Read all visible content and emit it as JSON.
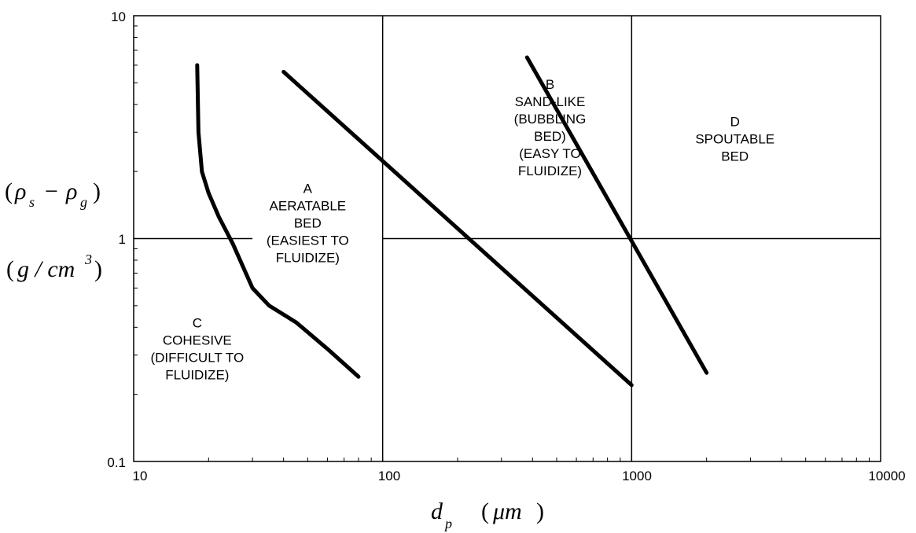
{
  "chart_data": {
    "type": "line",
    "title": "",
    "x_scale": "log",
    "y_scale": "log",
    "xlim": [
      10,
      10000
    ],
    "ylim": [
      0.1,
      10
    ],
    "grid": false,
    "x_ticks": [
      "10",
      "100",
      "1000",
      "10000"
    ],
    "y_ticks": [
      "10",
      "1",
      "0.1"
    ],
    "xlabel": {
      "symbol": "d",
      "subscript": "p",
      "unit": "μm"
    },
    "ylabel": {
      "line1": {
        "symbol_a": "ρ",
        "sub_a": "s",
        "minus": "−",
        "symbol_b": "ρ",
        "sub_b": "g"
      },
      "line2": {
        "unit": "g / cm",
        "exponent": "3"
      }
    },
    "reference_lines": [
      {
        "orientation": "vertical",
        "x": 100,
        "y_range": [
          0.1,
          10
        ]
      },
      {
        "orientation": "vertical",
        "x": 1000,
        "y_range": [
          0.1,
          10
        ]
      },
      {
        "orientation": "horizontal",
        "y": 1,
        "x_range": [
          10,
          30
        ]
      },
      {
        "orientation": "horizontal",
        "y": 1,
        "x_range": [
          100,
          10000
        ]
      }
    ],
    "series": [
      {
        "x": [
          18,
          18.2,
          18.8,
          20,
          22,
          25,
          30,
          35,
          45,
          60,
          80
        ],
        "y": [
          6.0,
          3.0,
          2.0,
          1.6,
          1.25,
          0.95,
          0.6,
          0.5,
          0.42,
          0.32,
          0.24
        ]
      },
      {
        "x": [
          40,
          1000
        ],
        "y": [
          5.6,
          0.22
        ]
      },
      {
        "x": [
          380,
          2000
        ],
        "y": [
          6.5,
          0.25
        ]
      }
    ],
    "regions": [
      {
        "letter": "C",
        "lines": [
          "COHESIVE",
          "(DIFFICULT TO",
          "FLUIDIZE)"
        ],
        "x": 18,
        "y": 0.4
      },
      {
        "letter": "A",
        "lines": [
          "AERATABLE",
          "BED",
          "(EASIEST TO",
          "FLUIDIZE)"
        ],
        "x": 50,
        "y": 1.6
      },
      {
        "letter": "B",
        "lines": [
          "SAND-LIKE",
          "(BUBBLING",
          "BED)",
          "(EASY TO",
          "FLUIDIZE)"
        ],
        "x": 470,
        "y": 4.7
      },
      {
        "letter": "D",
        "lines": [
          "SPOUTABLE",
          "BED"
        ],
        "x": 2600,
        "y": 3.2
      }
    ]
  }
}
